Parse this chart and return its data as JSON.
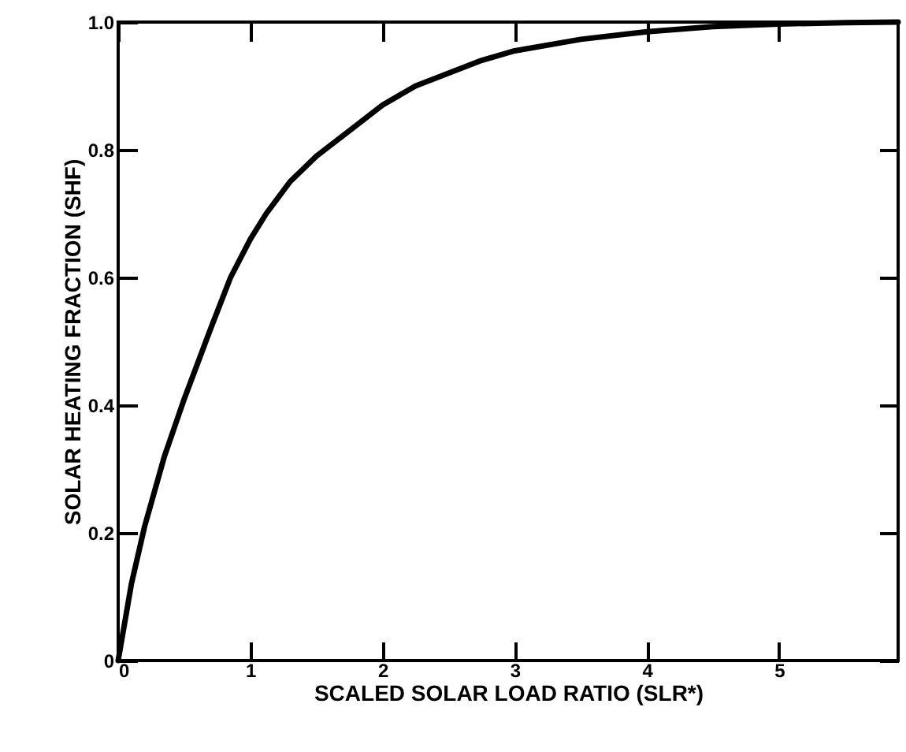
{
  "chart_data": {
    "type": "line",
    "xlabel": "SCALED SOLAR LOAD RATIO (SLR*)",
    "ylabel": "SOLAR HEATING FRACTION (SHF)",
    "x": [
      0,
      0.1,
      0.2,
      0.35,
      0.5,
      0.7,
      0.85,
      1.0,
      1.12,
      1.3,
      1.5,
      1.75,
      2.0,
      2.25,
      2.5,
      2.75,
      3.0,
      3.5,
      4.0,
      4.5,
      5.0,
      5.5,
      5.9
    ],
    "series": [
      {
        "color": "#000000",
        "values": [
          0,
          0.12,
          0.21,
          0.32,
          0.41,
          0.52,
          0.6,
          0.66,
          0.7,
          0.75,
          0.79,
          0.83,
          0.87,
          0.9,
          0.92,
          0.94,
          0.955,
          0.973,
          0.985,
          0.993,
          0.997,
          0.999,
          1.0
        ]
      }
    ],
    "xlim": [
      0,
      5.9
    ],
    "xticks": [
      0,
      1,
      2,
      3,
      4,
      5
    ],
    "ylim": [
      0,
      1.0
    ],
    "yticks": [
      0,
      0.2,
      0.4,
      0.6,
      0.8,
      {
        "value": 1.0,
        "label": "1.0"
      }
    ],
    "grid": false,
    "marker": "none",
    "line_style": "solid"
  }
}
